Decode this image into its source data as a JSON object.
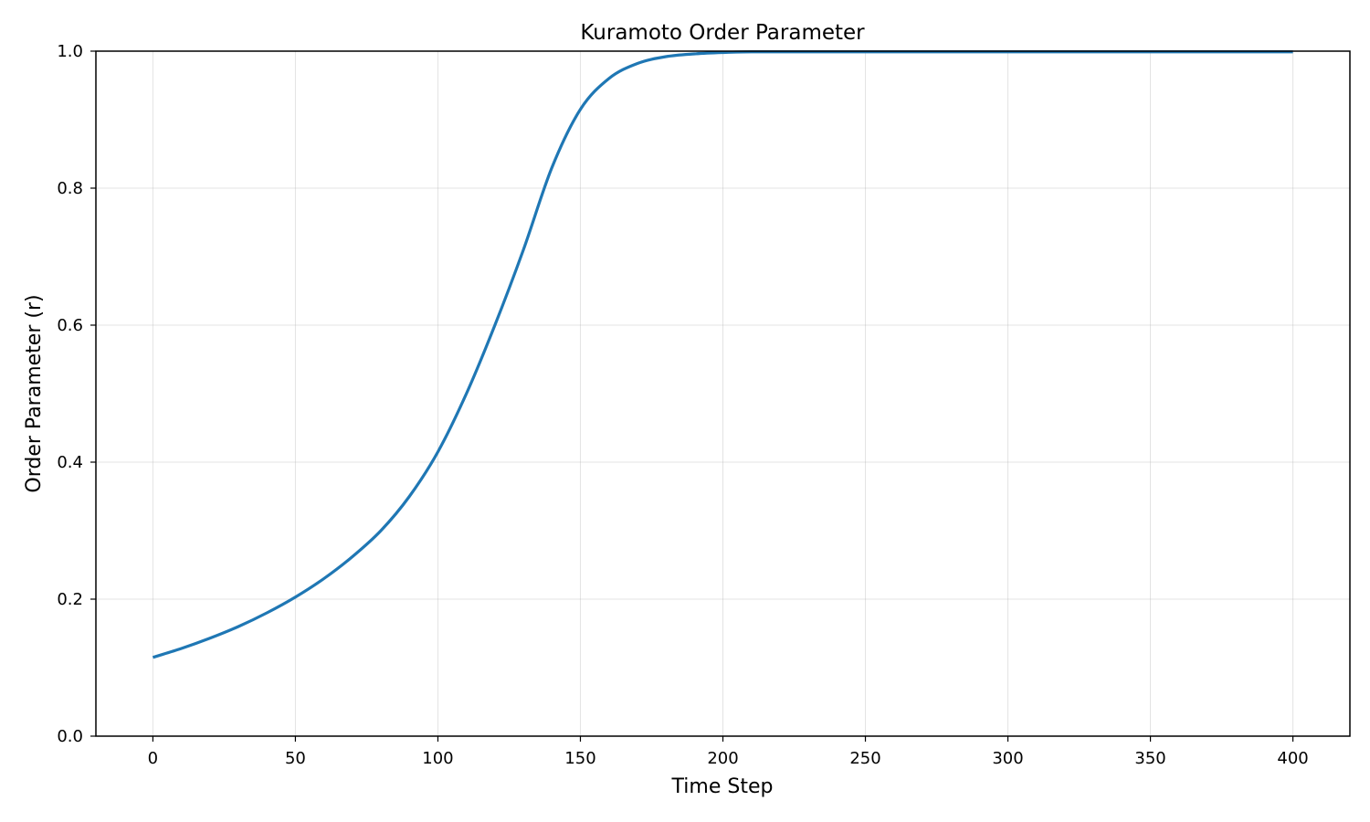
{
  "chart_data": {
    "type": "line",
    "title": "Kuramoto Order Parameter",
    "xlabel": "Time Step",
    "ylabel": "Order Parameter (r)",
    "xlim": [
      -20,
      420
    ],
    "ylim": [
      0.0,
      1.0
    ],
    "x_ticks": [
      "0",
      "50",
      "100",
      "150",
      "200",
      "250",
      "300",
      "350",
      "400"
    ],
    "x_tick_values": [
      0,
      50,
      100,
      150,
      200,
      250,
      300,
      350,
      400
    ],
    "y_ticks": [
      "0.0",
      "0.2",
      "0.4",
      "0.6",
      "0.8",
      "1.0"
    ],
    "y_tick_values": [
      0.0,
      0.2,
      0.4,
      0.6,
      0.8,
      1.0
    ],
    "grid": true,
    "series": [
      {
        "color": "#1f77b4",
        "x": [
          0,
          10,
          20,
          30,
          40,
          50,
          60,
          70,
          80,
          90,
          100,
          110,
          120,
          130,
          140,
          150,
          160,
          170,
          180,
          190,
          200,
          210,
          220,
          240,
          260,
          300,
          350,
          400
        ],
        "values": [
          0.115,
          0.128,
          0.143,
          0.16,
          0.18,
          0.203,
          0.23,
          0.262,
          0.3,
          0.35,
          0.415,
          0.5,
          0.6,
          0.71,
          0.83,
          0.915,
          0.96,
          0.982,
          0.992,
          0.996,
          0.998,
          0.999,
          0.999,
          0.999,
          0.999,
          0.999,
          0.999,
          0.999
        ]
      }
    ]
  }
}
